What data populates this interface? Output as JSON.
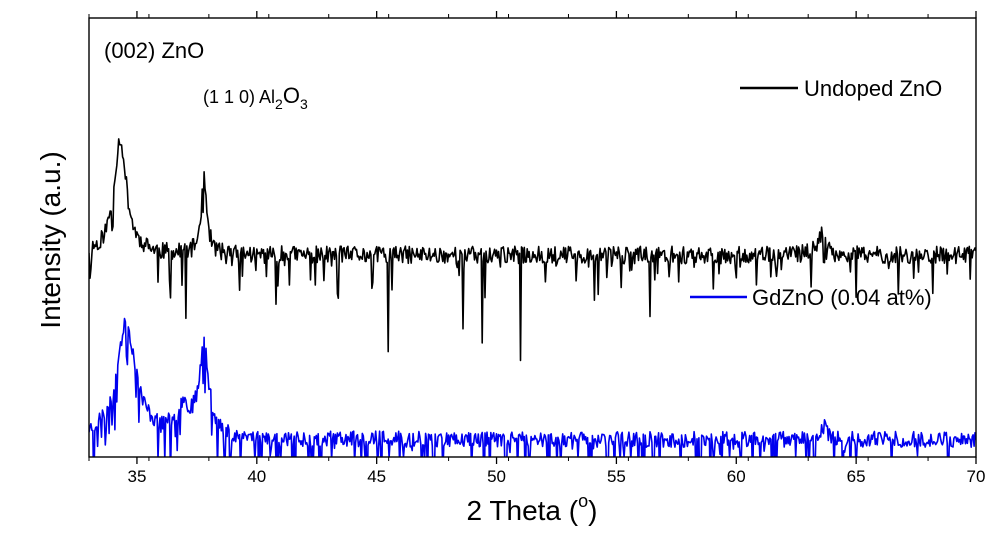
{
  "chart_data": {
    "type": "line",
    "title": "",
    "xlabel": "2 Theta (",
    "xlabel_sup": "o",
    "xlabel_close": ")",
    "ylabel": "Intensity (a.u.)",
    "xlim": [
      33,
      70
    ],
    "ylim": [
      -1.15,
      1.35
    ],
    "x_ticks": [
      35,
      40,
      45,
      50,
      55,
      60,
      65,
      70
    ],
    "x_tick_labels": [
      "35",
      "40",
      "45",
      "50",
      "55",
      "60",
      "65",
      "70"
    ],
    "y_ticks_shown": false,
    "legend_position": "right",
    "annotations": [
      {
        "id": "zno",
        "text": "(002) ZnO",
        "x": 34.3
      },
      {
        "id": "al2o3",
        "base": "(1 1 0) Al",
        "sub1": "2",
        "mid": "O",
        "sub2": "3",
        "x": 37.8
      }
    ],
    "series": [
      {
        "name": "Undoped ZnO",
        "color": "#000000",
        "baseline": 0.0,
        "noise": 0.05,
        "dip_density": 0.32,
        "dip_depth": 0.22,
        "seed": 11,
        "x_start": 33.0,
        "peaks": [
          {
            "x": 34.3,
            "h": 0.66,
            "w": 0.32
          },
          {
            "x": 37.8,
            "h": 0.45,
            "w": 0.14
          },
          {
            "x": 63.5,
            "h": 0.12,
            "w": 0.22
          }
        ],
        "deep_dips": [
          {
            "x": 37.05,
            "v": -0.36
          },
          {
            "x": 40.8,
            "v": -0.28
          },
          {
            "x": 45.5,
            "v": -0.55
          },
          {
            "x": 48.6,
            "v": -0.42
          },
          {
            "x": 49.4,
            "v": -0.5
          },
          {
            "x": 51.0,
            "v": -0.6
          },
          {
            "x": 56.4,
            "v": -0.35
          },
          {
            "x": 65.0,
            "v": -0.24
          }
        ]
      },
      {
        "name": "GdZnO (0.04 at%)",
        "color": "#0000ee",
        "baseline": -1.05,
        "noise": 0.045,
        "dip_density": 0.58,
        "dip_depth": 0.28,
        "seed": 23,
        "x_start": 33.0,
        "peaks": [
          {
            "x": 34.55,
            "h": 0.65,
            "w": 0.5
          },
          {
            "x": 37.8,
            "h": 0.52,
            "w": 0.25
          },
          {
            "x": 36.9,
            "h": 0.16,
            "w": 0.35
          },
          {
            "x": 63.6,
            "h": 0.08,
            "w": 0.18
          }
        ],
        "deep_dips": [
          {
            "x": 33.2,
            "v": -1.36
          },
          {
            "x": 36.4,
            "v": -1.25
          },
          {
            "x": 41.6,
            "v": -1.45
          },
          {
            "x": 44.6,
            "v": -1.45
          },
          {
            "x": 49.5,
            "v": -1.5
          },
          {
            "x": 50.4,
            "v": -1.5
          },
          {
            "x": 52.2,
            "v": -1.42
          },
          {
            "x": 61.6,
            "v": -1.45
          }
        ]
      }
    ]
  }
}
